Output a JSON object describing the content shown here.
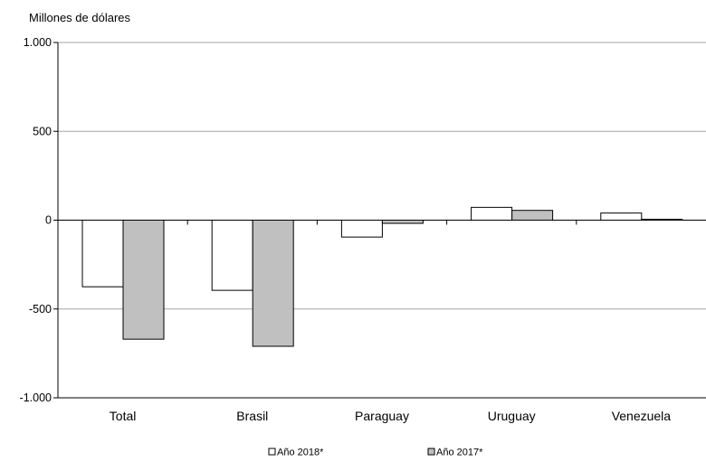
{
  "chart_data": {
    "type": "bar",
    "title": "",
    "unit_label": "Millones  de dólares",
    "xlabel": "",
    "ylabel": "",
    "ylim": [
      -1000,
      1000
    ],
    "yticks": [
      1000,
      500,
      0,
      -500,
      -1000
    ],
    "ytick_labels": [
      "1.000",
      "500",
      "0",
      "-500",
      "-1.000"
    ],
    "categories": [
      "Total",
      "Brasil",
      "Paraguay",
      "Uruguay",
      "Venezuela"
    ],
    "series": [
      {
        "name": "Año 2018*",
        "values": [
          -375,
          -395,
          -95,
          72,
          40
        ],
        "color": "#ffffff"
      },
      {
        "name": "Año 2017*",
        "values": [
          -670,
          -710,
          -18,
          55,
          5
        ],
        "color": "#c0c0c0"
      }
    ],
    "grid": true,
    "legend_position": "bottom"
  }
}
